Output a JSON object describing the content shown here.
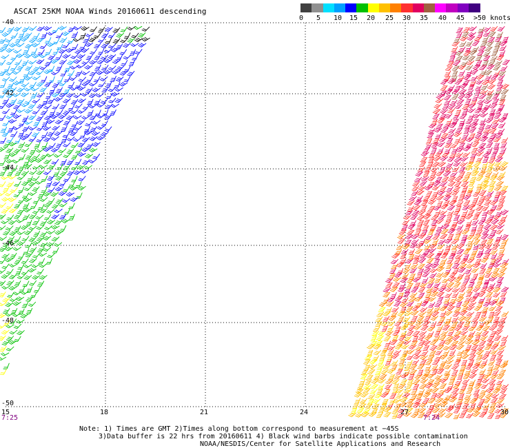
{
  "title": "ASCAT 25KM NOAA Winds 20160611 descending",
  "legend": {
    "colors": [
      "#404040",
      "#909090",
      "#00e0ff",
      "#00a0ff",
      "#0000ff",
      "#00c000",
      "#ffff00",
      "#ffc000",
      "#ff8000",
      "#ff3030",
      "#e00060",
      "#a06040",
      "#ff00ff",
      "#c000c0",
      "#8000c0",
      "#400080"
    ],
    "labels": [
      "0",
      "5",
      "10",
      "15",
      "20",
      "25",
      "30",
      "35",
      "40",
      "45",
      ">50 knots"
    ]
  },
  "map": {
    "lat_labels": [
      "-40",
      "-42",
      "-44",
      "-46",
      "-48",
      "-50"
    ],
    "lon_labels": [
      "15",
      "18",
      "21",
      "24",
      "27",
      "30"
    ],
    "time_labels": [
      "7:25",
      "7:24"
    ],
    "lat_range": [
      -50,
      -40
    ],
    "lon_range": [
      15,
      30
    ],
    "grid": true
  },
  "notes": {
    "line1": "Note: 1) Times are GMT 2)Times along bottom correspond to measurement at −45S",
    "line2": "3)Data buffer is 22 hrs from 20160611 4) Black wind barbs indicate possible contamination",
    "line3": "NOAA/NESDIS/Center for Satellite Applications and Research"
  }
}
